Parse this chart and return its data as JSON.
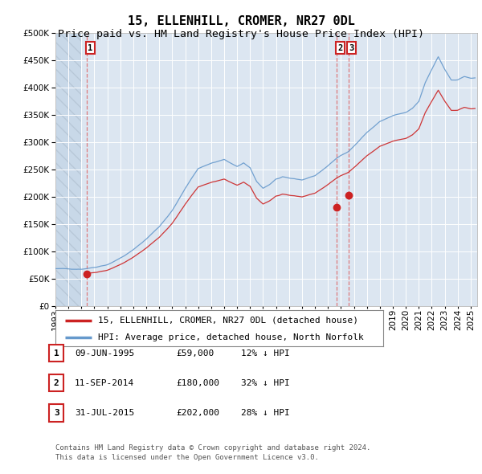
{
  "title": "15, ELLENHILL, CROMER, NR27 0DL",
  "subtitle": "Price paid vs. HM Land Registry's House Price Index (HPI)",
  "ylim": [
    0,
    500000
  ],
  "yticks": [
    0,
    50000,
    100000,
    150000,
    200000,
    250000,
    300000,
    350000,
    400000,
    450000,
    500000
  ],
  "xlim_start": 1993.0,
  "xlim_end": 2025.5,
  "background_color": "#ffffff",
  "plot_bg_color": "#dce6f1",
  "grid_color": "#ffffff",
  "sold_line_color": "#cc2222",
  "hpi_line_color": "#6699cc",
  "vline_color": "#dd6666",
  "transaction_dates": [
    1995.44,
    2014.69,
    2015.58
  ],
  "transaction_prices": [
    59000,
    180000,
    202000
  ],
  "transaction_labels": [
    "1",
    "2",
    "3"
  ],
  "legend_label_sold": "15, ELLENHILL, CROMER, NR27 0DL (detached house)",
  "legend_label_hpi": "HPI: Average price, detached house, North Norfolk",
  "table_rows": [
    [
      "1",
      "09-JUN-1995",
      "£59,000",
      "12% ↓ HPI"
    ],
    [
      "2",
      "11-SEP-2014",
      "£180,000",
      "32% ↓ HPI"
    ],
    [
      "3",
      "31-JUL-2015",
      "£202,000",
      "28% ↓ HPI"
    ]
  ],
  "footer": "Contains HM Land Registry data © Crown copyright and database right 2024.\nThis data is licensed under the Open Government Licence v3.0.",
  "title_fontsize": 11,
  "subtitle_fontsize": 9.5,
  "tick_fontsize": 7.5,
  "legend_fontsize": 8,
  "table_fontsize": 8
}
